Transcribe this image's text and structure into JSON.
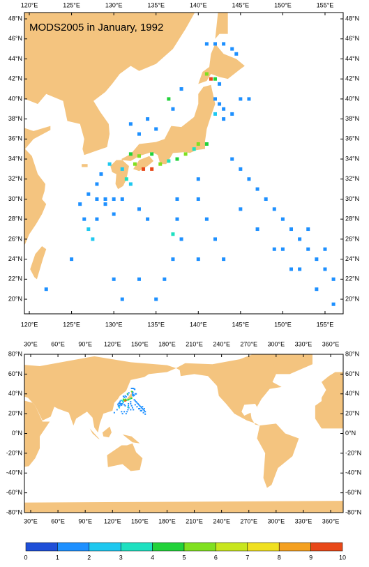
{
  "title": "MODS2005 in January, 1992",
  "top_map": {
    "xlim": [
      119.42,
      157.15
    ],
    "ylim": [
      18.54,
      48.63
    ],
    "xticks": [
      {
        "value": 120,
        "label": "120°E"
      },
      {
        "value": 125,
        "label": "125°E"
      },
      {
        "value": 130,
        "label": "130°E"
      },
      {
        "value": 135,
        "label": "135°E"
      },
      {
        "value": 140,
        "label": "140°E"
      },
      {
        "value": 145,
        "label": "145°E"
      },
      {
        "value": 150,
        "label": "150°E"
      },
      {
        "value": 155,
        "label": "155°E"
      }
    ],
    "yticks": [
      {
        "value": 20,
        "label": "20°N"
      },
      {
        "value": 22,
        "label": "22°N"
      },
      {
        "value": 24,
        "label": "24°N"
      },
      {
        "value": 26,
        "label": "26°N"
      },
      {
        "value": 28,
        "label": "28°N"
      },
      {
        "value": 30,
        "label": "30°N"
      },
      {
        "value": 32,
        "label": "32°N"
      },
      {
        "value": 34,
        "label": "34°N"
      },
      {
        "value": 36,
        "label": "36°N"
      },
      {
        "value": 38,
        "label": "38°N"
      },
      {
        "value": 40,
        "label": "40°N"
      },
      {
        "value": 42,
        "label": "42°N"
      },
      {
        "value": 44,
        "label": "44°N"
      },
      {
        "value": 46,
        "label": "46°N"
      },
      {
        "value": 48,
        "label": "48°N"
      }
    ]
  },
  "bottom_map": {
    "xlim": [
      23.1,
      373.8
    ],
    "ylim": [
      -80,
      80
    ],
    "xticks": [
      {
        "value": 30,
        "label": "30°E"
      },
      {
        "value": 60,
        "label": "60°E"
      },
      {
        "value": 90,
        "label": "90°E"
      },
      {
        "value": 120,
        "label": "120°E"
      },
      {
        "value": 150,
        "label": "150°E"
      },
      {
        "value": 180,
        "label": "180°E"
      },
      {
        "value": 210,
        "label": "210°E"
      },
      {
        "value": 240,
        "label": "240°E"
      },
      {
        "value": 270,
        "label": "270°E"
      },
      {
        "value": 300,
        "label": "300°E"
      },
      {
        "value": 330,
        "label": "330°E"
      },
      {
        "value": 360,
        "label": "360°E"
      }
    ],
    "yticks": [
      {
        "value": -80,
        "label": "-80°N"
      },
      {
        "value": -60,
        "label": "-60°N"
      },
      {
        "value": -40,
        "label": "-40°N"
      },
      {
        "value": -20,
        "label": "-20°N"
      },
      {
        "value": 0,
        "label": "0°N"
      },
      {
        "value": 20,
        "label": "20°N"
      },
      {
        "value": 40,
        "label": "40°N"
      },
      {
        "value": 60,
        "label": "60°N"
      },
      {
        "value": 80,
        "label": "80°N"
      }
    ]
  },
  "colorbar": {
    "ticks": [
      0,
      1,
      2,
      3,
      4,
      5,
      6,
      7,
      8,
      9,
      10
    ],
    "colors": [
      "#1f4fd8",
      "#1e90ff",
      "#1ec8f0",
      "#1ee0c0",
      "#22d23a",
      "#80e020",
      "#c8e61e",
      "#f0e020",
      "#f4a020",
      "#e84818"
    ]
  },
  "observations": [
    [
      141,
      45.5,
      1
    ],
    [
      142,
      45.5,
      1
    ],
    [
      143,
      45.5,
      1
    ],
    [
      144,
      45,
      1
    ],
    [
      144.5,
      44.5,
      1
    ],
    [
      141.5,
      42,
      9
    ],
    [
      141,
      42.5,
      5
    ],
    [
      142,
      42,
      4
    ],
    [
      142.5,
      41.5,
      1
    ],
    [
      142,
      40,
      1
    ],
    [
      142.5,
      39.5,
      1
    ],
    [
      143,
      39,
      1
    ],
    [
      142,
      38.5,
      2
    ],
    [
      143,
      38,
      1
    ],
    [
      144,
      38.5,
      1
    ],
    [
      145,
      40,
      1
    ],
    [
      146,
      40,
      1
    ],
    [
      134,
      38,
      1
    ],
    [
      135,
      37,
      1
    ],
    [
      136.5,
      40,
      4
    ],
    [
      137,
      39,
      1
    ],
    [
      133,
      36.5,
      1
    ],
    [
      132,
      37.5,
      1
    ],
    [
      138,
      41,
      1
    ],
    [
      140,
      35.5,
      5
    ],
    [
      141,
      35.5,
      4
    ],
    [
      139.5,
      35,
      3
    ],
    [
      138.5,
      34.5,
      5
    ],
    [
      137.5,
      34,
      4
    ],
    [
      136.5,
      33.8,
      3
    ],
    [
      135.5,
      33.5,
      5
    ],
    [
      134.5,
      33,
      9
    ],
    [
      133.5,
      33,
      9
    ],
    [
      132.5,
      33.5,
      5
    ],
    [
      132,
      34.5,
      4
    ],
    [
      131,
      33,
      2
    ],
    [
      131.5,
      32,
      3
    ],
    [
      132,
      31.5,
      2
    ],
    [
      133,
      34.3,
      5
    ],
    [
      134.5,
      34.5,
      4
    ],
    [
      129.5,
      33.5,
      2
    ],
    [
      128.5,
      32.5,
      1
    ],
    [
      128,
      31.5,
      1
    ],
    [
      127,
      30.5,
      1
    ],
    [
      128,
      30,
      1
    ],
    [
      129,
      29.5,
      1
    ],
    [
      130,
      28.5,
      1
    ],
    [
      127,
      27,
      2
    ],
    [
      127.5,
      26,
      2
    ],
    [
      126.5,
      28,
      1
    ],
    [
      128,
      28,
      1
    ],
    [
      144,
      34,
      1
    ],
    [
      145,
      33,
      1
    ],
    [
      146,
      32,
      1
    ],
    [
      147,
      31,
      1
    ],
    [
      148,
      30,
      1
    ],
    [
      149,
      29,
      1
    ],
    [
      150,
      28,
      1
    ],
    [
      151,
      27,
      1
    ],
    [
      152,
      26,
      1
    ],
    [
      153,
      25,
      1
    ],
    [
      154,
      24,
      1
    ],
    [
      155,
      23,
      1
    ],
    [
      156,
      22,
      1
    ],
    [
      140,
      30,
      1
    ],
    [
      141,
      28,
      1
    ],
    [
      142,
      26,
      1
    ],
    [
      143,
      24,
      1
    ],
    [
      138,
      26,
      1
    ],
    [
      137,
      24,
      1
    ],
    [
      136,
      22,
      1
    ],
    [
      135,
      20,
      1
    ],
    [
      133,
      22,
      1
    ],
    [
      131,
      20,
      1
    ],
    [
      130,
      22,
      1
    ],
    [
      125,
      24,
      1
    ],
    [
      122,
      21,
      1
    ],
    [
      150,
      25,
      1
    ],
    [
      152,
      23,
      1
    ],
    [
      154,
      21,
      1
    ],
    [
      156,
      19.5,
      1
    ],
    [
      155,
      25,
      1
    ],
    [
      153,
      27,
      1
    ],
    [
      140,
      32,
      1
    ],
    [
      145,
      29,
      1
    ],
    [
      147,
      27,
      1
    ],
    [
      149,
      25,
      1
    ],
    [
      151,
      23,
      1
    ],
    [
      137.5,
      30,
      1
    ],
    [
      137.5,
      28,
      1
    ],
    [
      137,
      26.5,
      3
    ],
    [
      140,
      24,
      1
    ],
    [
      134,
      28,
      1
    ],
    [
      133,
      29,
      1
    ],
    [
      131,
      30,
      1
    ],
    [
      130,
      30,
      1
    ],
    [
      129,
      30,
      1
    ],
    [
      126,
      29.5,
      1
    ]
  ]
}
